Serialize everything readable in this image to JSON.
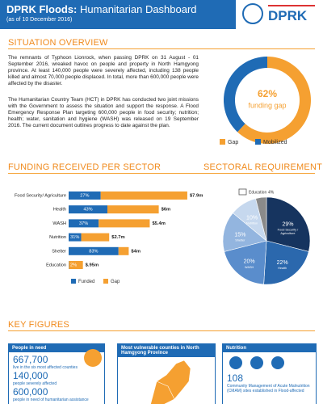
{
  "header": {
    "title_main": "DPRK Floods:",
    "title_sub": "Humanitarian Dashboard",
    "date": "(as of 10 December 2016)",
    "logo": "DPRK"
  },
  "overview": {
    "heading": "SITUATION OVERVIEW",
    "paragraphs": [
      "The remnants of Typhoon Lionrock, when passing DPRK on 31 August - 01 September 2016, wreaked havoc on people and property in North Hamgyong province. At least 140,000 people were severely affected, including 138 people killed and almost 70,000 people displaced. In total, more than 600,000 people were affected by the disaster.",
      "The Humanitarian Country Team (HCT) in DPRK has conducted two joint missions with the Government to assess the situation and support the response. A Flood Emergency Response Plan targeting 600,000 people in food security; nutrition; health; water, sanitation and hygiene (WASH) was released on 19 September 2016. The current document outlines progress to date against the plan."
    ]
  },
  "donut": {
    "type": "pie",
    "categories": [
      "Gap",
      "Mobilized"
    ],
    "values": [
      62,
      38
    ],
    "value_labels": [
      "62%",
      null
    ],
    "colors": [
      "#f5a031",
      "#1f6bb5"
    ],
    "center_text": "funding gap"
  },
  "funding": {
    "type": "bar",
    "heading": "FUNDING RECEIVED PER SECTOR",
    "categories": [
      "Food Security/ Agriculture",
      "Health",
      "WASH",
      "Nutrition",
      "Shelter",
      "Education"
    ],
    "series": [
      {
        "name": "Funded",
        "color": "#1f6bb5",
        "values": [
          27,
          43,
          37,
          31,
          83,
          2
        ],
        "value_labels": [
          "27%",
          "43%",
          "37%",
          "31%",
          "83%",
          "2%"
        ]
      },
      {
        "name": "Gap",
        "color": "#f5a031"
      }
    ],
    "totals": [
      7.9,
      6,
      5.4,
      2.7,
      4,
      0.95
    ],
    "total_labels": [
      "$7.9m",
      "$6m",
      "$5.4m",
      "$2.7m",
      "$4m",
      "$.95m"
    ]
  },
  "sectoral": {
    "type": "pie",
    "heading": "SECTORAL REQUIREMENT",
    "categories": [
      "Food Security / Agriculture",
      "Health",
      "WASH",
      "Shelter",
      "Nutrition",
      "Education"
    ],
    "values": [
      29,
      22,
      20,
      15,
      10,
      4
    ],
    "value_labels": [
      "29%",
      "22%",
      "20%",
      "15%",
      "10%",
      "4%"
    ],
    "colors": [
      "#16345f",
      "#2b68ad",
      "#5a8dcc",
      "#93b5df",
      "#c6d8ee",
      "#8a8a8a"
    ]
  },
  "key_figures": {
    "heading": "KEY FIGURES",
    "people": {
      "title": "People in need",
      "items": [
        {
          "value": "667,700",
          "label": "live in the six most affected counties"
        },
        {
          "value": "140,000",
          "label": "people severely affected"
        },
        {
          "value": "600,000",
          "label": "people in need of humanitarian assistance"
        }
      ]
    },
    "counties": {
      "title": "Most vulnerable counties in North Hamgyong Province"
    },
    "nutrition": {
      "title": "Nutrition",
      "value": "108",
      "label": "Community Management of Acute Malnutrition (CMAM) sites established in Flood-affected"
    }
  }
}
